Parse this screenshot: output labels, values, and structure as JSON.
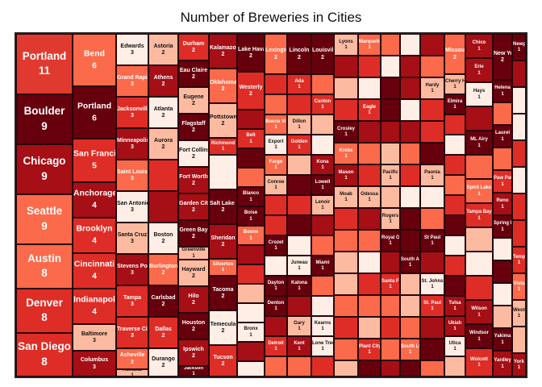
{
  "chart_data": {
    "type": "treemap",
    "title": "Number of Breweries in Cities",
    "color_scale": [
      "#ffeee6",
      "#fcbba1",
      "#fb6a4a",
      "#de2d26",
      "#a50f15",
      "#67000d"
    ],
    "columns": [
      {
        "rows": [
          [
            "Portland",
            11
          ],
          [
            "Boulder",
            9
          ],
          [
            "Chicago",
            9
          ],
          [
            "Seattle",
            9
          ],
          [
            "Austin",
            8
          ],
          [
            "Denver",
            8
          ],
          [
            "San Diego",
            8
          ]
        ]
      },
      {
        "rows": [
          [
            "Bend",
            6
          ],
          [
            "Portland",
            6
          ],
          [
            "San Francisco",
            5
          ],
          [
            "Anchorage",
            4
          ],
          [
            "Brooklyn",
            4
          ],
          [
            "Cincinnati",
            4
          ],
          [
            "Indianapolis",
            4
          ],
          [
            "Baltimore",
            3
          ],
          [
            "Columbus",
            3
          ]
        ]
      },
      {
        "rows": [
          [
            "Edwards",
            3
          ],
          [
            "Grand Rapids",
            3
          ],
          [
            "Jacksonville",
            3
          ],
          [
            "Minneapolis",
            3
          ],
          [
            "Saint Louis",
            3
          ],
          [
            "San Antonio",
            3
          ],
          [
            "Santa Cruz",
            3
          ],
          [
            "Stevens Point",
            3
          ],
          [
            "Tampa",
            3
          ],
          [
            "Traverse City",
            3
          ],
          [
            "Asheville",
            2
          ],
          [
            "Ashland",
            1
          ]
        ]
      },
      {
        "rows": [
          [
            "Astoria",
            2
          ],
          [
            "Athens",
            2
          ],
          [
            "Atlanta",
            2
          ],
          [
            "Aurora",
            2
          ],
          [
            "",
            2
          ],
          [
            "",
            2
          ],
          [
            "Boston",
            2
          ],
          [
            "Burlington",
            2
          ],
          [
            "Carlsbad",
            2
          ],
          [
            "Dallas",
            2
          ],
          [
            "Durango",
            2
          ]
        ]
      },
      {
        "rows": [
          [
            "Durham",
            2
          ],
          [
            "Eau Claire",
            2
          ],
          [
            "Eugene",
            2
          ],
          [
            "Flagstaff",
            2
          ],
          [
            "Fort Collins",
            2
          ],
          [
            "Fort Worth",
            2
          ],
          [
            "Garden City",
            2
          ],
          [
            "Green Bay",
            2
          ],
          [
            "Greenville",
            1
          ],
          [
            "Hayward",
            2
          ],
          [
            "Hilo",
            2
          ],
          [
            "Houston",
            2
          ],
          [
            "Ipswich",
            2
          ],
          [
            "Jackson",
            1
          ]
        ]
      },
      {
        "rows": [
          [
            "Kalamazoo",
            2
          ],
          [
            "Oklahoma City",
            2
          ],
          [
            "Pottstown",
            2
          ],
          [
            "Richmond",
            1
          ],
          [
            "",
            2
          ],
          [
            "Salt Lake City",
            2
          ],
          [
            "Sheridan",
            2
          ],
          [
            "Silverton",
            1
          ],
          [
            "Tacoma",
            2
          ],
          [
            "Temecula",
            2
          ],
          [
            "Tucson",
            2
          ]
        ]
      },
      {
        "rows": [
          [
            "Lake Havasu City",
            2
          ],
          [
            "Westerly",
            2
          ],
          [
            "",
            1
          ],
          [
            "Belt",
            1
          ],
          [
            "",
            1
          ],
          [
            "",
            1
          ],
          [
            "Blanco",
            1
          ],
          [
            "Boise",
            1
          ],
          [
            "Boone",
            1
          ],
          [
            "",
            1
          ],
          [
            "",
            1
          ],
          [
            "",
            1
          ],
          [
            "",
            1
          ],
          [
            "Bronx",
            1
          ],
          [
            "",
            1
          ],
          [
            "",
            1
          ]
        ]
      },
      {
        "rows": [
          [
            "Lexington",
            2
          ],
          [
            "",
            1
          ],
          [
            "",
            1
          ],
          [
            "Buena Vista",
            1
          ],
          [
            "Export",
            1
          ],
          [
            "Fargo",
            1
          ],
          [
            "Conroe",
            1
          ],
          [
            "",
            1
          ],
          [
            "",
            1
          ],
          [
            "Crozet",
            1
          ],
          [
            "",
            1
          ],
          [
            "Dayton",
            1
          ],
          [
            "Denton",
            1
          ],
          [
            "",
            1
          ],
          [
            "Detroit",
            1
          ],
          [
            "",
            1
          ]
        ]
      },
      {
        "rows": [
          [
            "Lincoln",
            2
          ],
          [
            "Ada",
            1
          ],
          [
            "",
            1
          ],
          [
            "Dillon",
            1
          ],
          [
            "Golden",
            1
          ],
          [
            "",
            1
          ],
          [
            "",
            1
          ],
          [
            "",
            1
          ],
          [
            "",
            1
          ],
          [
            "",
            1
          ],
          [
            "Juneau",
            1
          ],
          [
            "Kalona",
            1
          ],
          [
            "",
            1
          ],
          [
            "Gary",
            1
          ],
          [
            "Kent",
            1
          ],
          [
            "",
            1
          ]
        ]
      },
      {
        "rows": [
          [
            "Louisville",
            2
          ],
          [
            "",
            1
          ],
          [
            "Canton",
            1
          ],
          [
            "",
            1
          ],
          [
            "",
            1
          ],
          [
            "Kona",
            1
          ],
          [
            "Lowell",
            1
          ],
          [
            "Lenoir",
            1
          ],
          [
            "",
            1
          ],
          [
            "",
            1
          ],
          [
            "Miami",
            1
          ],
          [
            "",
            1
          ],
          [
            "",
            1
          ],
          [
            "Kearns",
            1
          ],
          [
            "Lone Tree",
            1
          ],
          [
            "",
            1
          ]
        ]
      },
      {
        "rows": [
          [
            "Lyons",
            1
          ],
          [
            "",
            1
          ],
          [
            "",
            1
          ],
          [
            "",
            1
          ],
          [
            "Crosley",
            1
          ],
          [
            "Krebs",
            1
          ],
          [
            "Mason",
            1
          ],
          [
            "Moab",
            1
          ],
          [
            "",
            1
          ],
          [
            "",
            1
          ],
          [
            "",
            1
          ],
          [
            "",
            1
          ],
          [
            "",
            1
          ],
          [
            "",
            1
          ],
          [
            "",
            1
          ],
          [
            "",
            1
          ]
        ]
      },
      {
        "rows": [
          [
            "Marquette",
            1
          ],
          [
            "",
            1
          ],
          [
            "",
            1
          ],
          [
            "Eagle",
            1
          ],
          [
            "",
            1
          ],
          [
            "",
            1
          ],
          [
            "",
            1
          ],
          [
            "Odessa",
            1
          ],
          [
            "",
            1
          ],
          [
            "",
            1
          ],
          [
            "",
            1
          ],
          [
            "",
            1
          ],
          [
            "",
            1
          ],
          [
            "",
            1
          ],
          [
            "Plant City",
            1
          ],
          [
            "",
            1
          ]
        ]
      },
      {
        "rows": [
          [
            "",
            1
          ],
          [
            "",
            1
          ],
          [
            "",
            1
          ],
          [
            "",
            1
          ],
          [
            "",
            1
          ],
          [
            "",
            1
          ],
          [
            "Pacific",
            1
          ],
          [
            "",
            1
          ],
          [
            "Rogers",
            1
          ],
          [
            "Royal Oak",
            1
          ],
          [
            "",
            1
          ],
          [
            "Santa Fe",
            1
          ],
          [
            "",
            1
          ],
          [
            "",
            1
          ],
          [
            "",
            1
          ],
          [
            "",
            1
          ]
        ]
      },
      {
        "rows": [
          [
            "",
            1
          ],
          [
            "",
            1
          ],
          [
            "",
            1
          ],
          [
            "",
            1
          ],
          [
            "",
            1
          ],
          [
            "",
            1
          ],
          [
            "",
            1
          ],
          [
            "",
            1
          ],
          [
            "",
            1
          ],
          [
            "",
            1
          ],
          [
            "South Austin",
            1
          ],
          [
            "",
            1
          ],
          [
            "",
            1
          ],
          [
            "",
            1
          ],
          [
            "South Lyon",
            1
          ],
          [
            "",
            1
          ]
        ]
      },
      {
        "rows": [
          [
            "",
            1
          ],
          [
            "",
            1
          ],
          [
            "Hardy",
            1
          ],
          [
            "",
            1
          ],
          [
            "",
            1
          ],
          [
            "",
            1
          ],
          [
            "Paonia",
            1
          ],
          [
            "",
            1
          ],
          [
            "",
            1
          ],
          [
            "St Paul",
            1
          ],
          [
            "",
            1
          ],
          [
            "St. Johns",
            1
          ],
          [
            "St. Paul",
            1
          ],
          [
            "",
            1
          ],
          [
            "",
            1
          ],
          [
            "",
            1
          ]
        ]
      },
      {
        "rows": [
          [
            "Missoula",
            2
          ],
          [
            "Cherry Hill",
            1
          ],
          [
            "Elmira",
            1
          ],
          [
            "",
            1
          ],
          [
            "",
            1
          ],
          [
            "",
            1
          ],
          [
            "",
            1
          ],
          [
            "",
            1
          ],
          [
            "",
            1
          ],
          [
            "",
            1
          ],
          [
            "",
            1
          ],
          [
            "",
            1
          ],
          [
            "Tulsa",
            1
          ],
          [
            "Ukiah",
            1
          ],
          [
            "Utica",
            1
          ],
          [
            "",
            1
          ]
        ]
      },
      {
        "rows": [
          [
            "Chico",
            1
          ],
          [
            "Erie",
            1
          ],
          [
            "Hays",
            1
          ],
          [
            "",
            1
          ],
          [
            "ML Airy",
            1
          ],
          [
            "",
            1
          ],
          [
            "Spirit Lake",
            1
          ],
          [
            "Tampa Bay",
            1
          ],
          [
            "",
            1
          ],
          [
            "",
            1
          ],
          [
            "",
            1
          ],
          [
            "Wilson",
            1
          ],
          [
            "Windsor",
            1
          ],
          [
            "Wolcott",
            1
          ]
        ]
      },
      {
        "rows": [
          [
            "New York",
            2
          ],
          [
            "Helena",
            1
          ],
          [
            "",
            1
          ],
          [
            "Laurel",
            1
          ],
          [
            "",
            1
          ],
          [
            "Paw Paw",
            1
          ],
          [
            "Reno",
            1
          ],
          [
            "Spring Lake",
            1
          ],
          [
            "",
            1
          ],
          [
            "",
            1
          ],
          [
            "",
            1
          ],
          [
            "",
            1
          ],
          [
            "Yakima",
            1
          ],
          [
            "Yardley",
            1
          ]
        ]
      },
      {
        "rows": [
          [
            "Newport",
            1
          ],
          [
            "",
            1
          ],
          [
            "",
            1
          ],
          [
            "",
            1
          ],
          [
            "",
            1
          ],
          [
            "",
            1
          ],
          [
            "",
            1
          ],
          [
            "",
            1
          ],
          [
            "Tempe",
            1
          ],
          [
            "Vista",
            1
          ],
          [
            "Weston",
            1
          ],
          [
            "",
            1
          ],
          [
            "York",
            1
          ]
        ]
      }
    ]
  }
}
